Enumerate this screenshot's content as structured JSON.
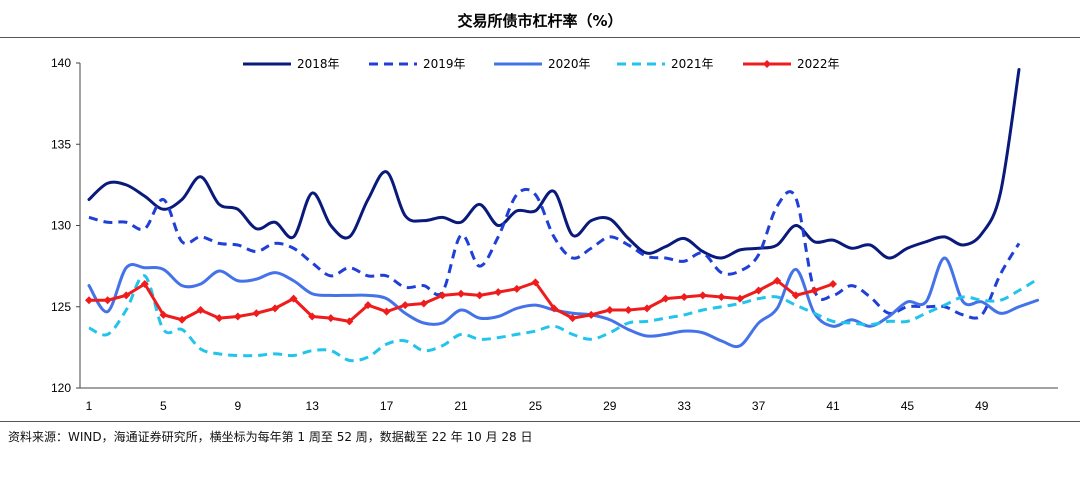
{
  "title": "交易所债市杠杆率（%）",
  "source": "资料来源：WIND，海通证券研究所，横坐标为每年第 1 周至 52 周，数据截至 22 年 10 月 28 日",
  "chart_data": {
    "type": "line",
    "title": "交易所债市杠杆率（%）",
    "xlabel": "",
    "ylabel": "",
    "ylim": [
      120,
      140
    ],
    "xlim": [
      1,
      52
    ],
    "yticks": [
      120,
      125,
      130,
      135,
      140
    ],
    "xticks": [
      1,
      5,
      9,
      13,
      17,
      21,
      25,
      29,
      33,
      37,
      41,
      45,
      49
    ],
    "grid": false,
    "legend_position": "top",
    "series": [
      {
        "name": "2018年",
        "color": "#0a1a7a",
        "style": "solid",
        "marker": "none",
        "x": [
          1,
          2,
          3,
          4,
          5,
          6,
          7,
          8,
          9,
          10,
          11,
          12,
          13,
          14,
          15,
          16,
          17,
          18,
          19,
          20,
          21,
          22,
          23,
          24,
          25,
          26,
          27,
          28,
          29,
          30,
          31,
          32,
          33,
          34,
          35,
          36,
          37,
          38,
          39,
          40,
          41,
          42,
          43,
          44,
          45,
          46,
          47,
          48,
          49,
          50,
          51
        ],
        "values": [
          131.6,
          132.6,
          132.5,
          131.8,
          131.0,
          131.6,
          133.0,
          131.3,
          131.0,
          129.8,
          130.2,
          129.3,
          132.0,
          130.0,
          129.3,
          131.6,
          133.3,
          130.6,
          130.3,
          130.5,
          130.2,
          131.3,
          130.0,
          130.9,
          130.9,
          132.1,
          129.4,
          130.3,
          130.4,
          129.2,
          128.3,
          128.7,
          129.2,
          128.4,
          128.0,
          128.5,
          128.6,
          128.8,
          130.0,
          129.0,
          129.1,
          128.6,
          128.8,
          128.0,
          128.6,
          129.0,
          129.3,
          128.8,
          129.5,
          132.0,
          139.6
        ]
      },
      {
        "name": "2019年",
        "color": "#1f3fd6",
        "style": "dashed",
        "marker": "none",
        "x": [
          1,
          2,
          3,
          4,
          5,
          6,
          7,
          8,
          9,
          10,
          11,
          12,
          13,
          14,
          15,
          16,
          17,
          18,
          19,
          20,
          21,
          22,
          23,
          24,
          25,
          26,
          27,
          28,
          29,
          30,
          31,
          32,
          33,
          34,
          35,
          36,
          37,
          38,
          39,
          40,
          41,
          42,
          43,
          44,
          45,
          46,
          47,
          48,
          49,
          50,
          51
        ],
        "values": [
          130.5,
          130.2,
          130.2,
          129.8,
          131.6,
          129.0,
          129.3,
          128.9,
          128.8,
          128.4,
          128.9,
          128.6,
          127.7,
          126.9,
          127.4,
          126.9,
          126.9,
          126.2,
          126.3,
          125.9,
          129.4,
          127.5,
          129.3,
          131.9,
          131.9,
          129.3,
          128.0,
          128.6,
          129.3,
          128.8,
          128.1,
          128.0,
          127.8,
          128.3,
          127.1,
          127.2,
          128.2,
          131.2,
          131.7,
          126.0,
          125.7,
          126.3,
          125.6,
          124.6,
          125.0,
          125.0,
          125.0,
          124.5,
          124.5,
          127.0,
          128.9
        ]
      },
      {
        "name": "2020年",
        "color": "#4472e8",
        "style": "solid",
        "marker": "none",
        "x": [
          1,
          2,
          3,
          4,
          5,
          6,
          7,
          8,
          9,
          10,
          11,
          12,
          13,
          14,
          15,
          16,
          17,
          18,
          19,
          20,
          21,
          22,
          23,
          24,
          25,
          26,
          27,
          28,
          29,
          30,
          31,
          32,
          33,
          34,
          35,
          36,
          37,
          38,
          39,
          40,
          41,
          42,
          43,
          44,
          45,
          46,
          47,
          48,
          49,
          50,
          51,
          52
        ],
        "values": [
          126.3,
          124.7,
          127.4,
          127.4,
          127.3,
          126.3,
          126.4,
          127.2,
          126.6,
          126.7,
          127.1,
          126.6,
          125.8,
          125.7,
          125.7,
          125.7,
          125.5,
          124.6,
          124.0,
          124.0,
          124.8,
          124.3,
          124.4,
          124.9,
          125.1,
          124.8,
          124.6,
          124.5,
          124.2,
          123.6,
          123.2,
          123.3,
          123.5,
          123.4,
          122.9,
          122.6,
          124.0,
          124.9,
          127.3,
          124.6,
          123.8,
          124.2,
          123.8,
          124.4,
          125.3,
          125.3,
          128.0,
          125.3,
          125.3,
          124.6,
          125.0,
          125.4
        ]
      },
      {
        "name": "2021年",
        "color": "#22c4ec",
        "style": "dashed",
        "marker": "none",
        "x": [
          1,
          2,
          3,
          4,
          5,
          6,
          7,
          8,
          9,
          10,
          11,
          12,
          13,
          14,
          15,
          16,
          17,
          18,
          19,
          20,
          21,
          22,
          23,
          24,
          25,
          26,
          27,
          28,
          29,
          30,
          31,
          32,
          33,
          34,
          35,
          36,
          37,
          38,
          39,
          40,
          41,
          42,
          43,
          44,
          45,
          46,
          47,
          48,
          49,
          50,
          51,
          52
        ],
        "values": [
          123.7,
          123.3,
          124.8,
          126.9,
          123.6,
          123.6,
          122.4,
          122.1,
          122.0,
          122.0,
          122.1,
          122.0,
          122.3,
          122.3,
          121.7,
          121.9,
          122.7,
          122.9,
          122.3,
          122.6,
          123.3,
          123.0,
          123.1,
          123.3,
          123.5,
          123.8,
          123.3,
          123.0,
          123.4,
          124.0,
          124.1,
          124.3,
          124.5,
          124.8,
          125.0,
          125.2,
          125.5,
          125.6,
          125.1,
          124.6,
          124.1,
          124.0,
          123.9,
          124.1,
          124.1,
          124.6,
          125.1,
          125.6,
          125.4,
          125.4,
          126.0,
          126.7
        ]
      },
      {
        "name": "2022年",
        "color": "#ee1c1c",
        "style": "solid",
        "marker": "diamond",
        "x": [
          1,
          2,
          3,
          4,
          5,
          6,
          7,
          8,
          9,
          10,
          11,
          12,
          13,
          14,
          15,
          16,
          17,
          18,
          19,
          20,
          21,
          22,
          23,
          24,
          25,
          26,
          27,
          28,
          29,
          30,
          31,
          32,
          33,
          34,
          35,
          36,
          37,
          38,
          39,
          40,
          41
        ],
        "values": [
          125.4,
          125.4,
          125.7,
          126.4,
          124.5,
          124.2,
          124.8,
          124.3,
          124.4,
          124.6,
          124.9,
          125.5,
          124.4,
          124.3,
          124.1,
          125.1,
          124.7,
          125.1,
          125.2,
          125.7,
          125.8,
          125.7,
          125.9,
          126.1,
          126.5,
          124.9,
          124.3,
          124.5,
          124.8,
          124.8,
          124.9,
          125.5,
          125.6,
          125.7,
          125.6,
          125.5,
          126.0,
          126.6,
          125.7,
          126.0,
          126.4
        ]
      }
    ]
  }
}
